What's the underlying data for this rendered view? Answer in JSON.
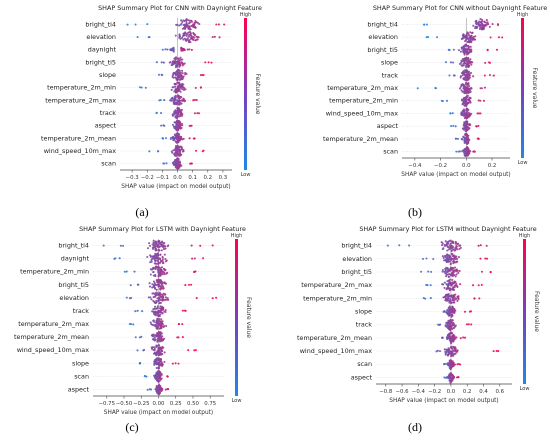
{
  "colors": {
    "low": "#1e88e5",
    "high": "#ff0052",
    "zero_line": "#999999",
    "text": "#333333"
  },
  "colorbar": {
    "high_label": "High",
    "low_label": "Low",
    "title": "Feature value"
  },
  "chart_data": [
    {
      "type": "scatter",
      "subtype": "shap-beeswarm",
      "panel_label": "(a)",
      "title": "SHAP Summary Plot for CNN with Daynight Feature",
      "xlabel": "SHAP value (impact on model output)",
      "ylabel": "",
      "xlim": [
        -0.38,
        0.36
      ],
      "xticks": [
        -0.3,
        -0.2,
        -0.1,
        0.0,
        0.1,
        0.2,
        0.3
      ],
      "xtick_labels": [
        "−0.3",
        "−0.2",
        "−0.1",
        "0.0",
        "0.1",
        "0.2",
        "0.3"
      ],
      "features": [
        {
          "name": "bright_ti4",
          "min": -0.33,
          "max": 0.33,
          "center": 0.07,
          "spread": 0.07,
          "hue": 0.7
        },
        {
          "name": "elevation",
          "min": -0.27,
          "max": 0.3,
          "center": 0.07,
          "spread": 0.08,
          "hue": 0.6
        },
        {
          "name": "daynight",
          "min": -0.1,
          "max": 0.1,
          "center": 0.0,
          "spread": 0.04,
          "hue": 0.5,
          "split": true
        },
        {
          "name": "bright_ti5",
          "min": -0.14,
          "max": 0.26,
          "center": 0.0,
          "spread": 0.05,
          "hue": 0.55
        },
        {
          "name": "slope",
          "min": -0.16,
          "max": 0.2,
          "center": 0.01,
          "spread": 0.05,
          "hue": 0.5
        },
        {
          "name": "temperature_2m_min",
          "min": -0.28,
          "max": 0.18,
          "center": 0.0,
          "spread": 0.05,
          "hue": 0.55
        },
        {
          "name": "temperature_2m_max",
          "min": -0.14,
          "max": 0.16,
          "center": 0.0,
          "spread": 0.05,
          "hue": 0.6
        },
        {
          "name": "track",
          "min": -0.14,
          "max": 0.17,
          "center": 0.0,
          "spread": 0.04,
          "hue": 0.5
        },
        {
          "name": "aspect",
          "min": -0.13,
          "max": 0.1,
          "center": 0.0,
          "spread": 0.03,
          "hue": 0.5
        },
        {
          "name": "temperature_2m_mean",
          "min": -0.11,
          "max": 0.13,
          "center": 0.0,
          "spread": 0.04,
          "hue": 0.55
        },
        {
          "name": "wind_speed_10m_max",
          "min": -0.2,
          "max": 0.18,
          "center": 0.0,
          "spread": 0.04,
          "hue": 0.55
        },
        {
          "name": "scan",
          "min": -0.11,
          "max": 0.1,
          "center": 0.0,
          "spread": 0.03,
          "hue": 0.5
        }
      ]
    },
    {
      "type": "scatter",
      "subtype": "shap-beeswarm",
      "panel_label": "(b)",
      "title": "SHAP Summary Plot for CNN without Daynight Feature",
      "xlabel": "SHAP value (impact on model output)",
      "ylabel": "",
      "xlim": [
        -0.5,
        0.34
      ],
      "xticks": [
        -0.4,
        -0.2,
        0.0,
        0.2
      ],
      "xtick_labels": [
        "−0.4",
        "−0.2",
        "0.0",
        "0.2"
      ],
      "features": [
        {
          "name": "bright_ti4",
          "min": -0.4,
          "max": 0.26,
          "center": 0.12,
          "spread": 0.06,
          "hue": 0.75
        },
        {
          "name": "elevation",
          "min": -0.32,
          "max": 0.3,
          "center": 0.02,
          "spread": 0.06,
          "hue": 0.6
        },
        {
          "name": "bright_ti5",
          "min": -0.15,
          "max": 0.24,
          "center": 0.0,
          "spread": 0.05,
          "hue": 0.55
        },
        {
          "name": "slope",
          "min": -0.16,
          "max": 0.22,
          "center": 0.0,
          "spread": 0.05,
          "hue": 0.5
        },
        {
          "name": "track",
          "min": -0.14,
          "max": 0.22,
          "center": 0.0,
          "spread": 0.05,
          "hue": 0.5
        },
        {
          "name": "temperature_2m_max",
          "min": -0.38,
          "max": 0.18,
          "center": 0.0,
          "spread": 0.05,
          "hue": 0.55
        },
        {
          "name": "temperature_2m_min",
          "min": -0.22,
          "max": 0.16,
          "center": 0.0,
          "spread": 0.04,
          "hue": 0.55
        },
        {
          "name": "wind_speed_10m_max",
          "min": -0.14,
          "max": 0.12,
          "center": 0.0,
          "spread": 0.04,
          "hue": 0.5
        },
        {
          "name": "aspect",
          "min": -0.12,
          "max": 0.1,
          "center": 0.0,
          "spread": 0.03,
          "hue": 0.5
        },
        {
          "name": "temperature_2m_mean",
          "min": -0.1,
          "max": 0.12,
          "center": 0.0,
          "spread": 0.03,
          "hue": 0.55
        },
        {
          "name": "scan",
          "min": -0.08,
          "max": 0.08,
          "center": 0.0,
          "spread": 0.03,
          "hue": 0.5
        }
      ]
    },
    {
      "type": "scatter",
      "subtype": "shap-beeswarm",
      "panel_label": "(c)",
      "title": "SHAP Summary Plot for LSTM with Daynight Feature",
      "xlabel": "SHAP value (impact on model output)",
      "ylabel": "",
      "xlim": [
        -0.95,
        0.95
      ],
      "xticks": [
        -0.75,
        -0.5,
        -0.25,
        0.0,
        0.25,
        0.5,
        0.75
      ],
      "xtick_labels": [
        "−0.75",
        "−0.50",
        "−0.25",
        "0.00",
        "0.25",
        "0.50",
        "0.75"
      ],
      "features": [
        {
          "name": "bright_ti4",
          "min": -0.8,
          "max": 0.8,
          "center": 0.0,
          "spread": 0.15,
          "hue": 0.55
        },
        {
          "name": "daynight",
          "min": -0.75,
          "max": 0.72,
          "center": 0.0,
          "spread": 0.14,
          "hue": 0.5
        },
        {
          "name": "temperature_2m_min",
          "min": -0.5,
          "max": 0.55,
          "center": 0.0,
          "spread": 0.13,
          "hue": 0.55
        },
        {
          "name": "bright_ti5",
          "min": -0.45,
          "max": 0.5,
          "center": 0.0,
          "spread": 0.12,
          "hue": 0.55
        },
        {
          "name": "elevation",
          "min": -0.48,
          "max": 0.85,
          "center": 0.0,
          "spread": 0.13,
          "hue": 0.6
        },
        {
          "name": "track",
          "min": -0.35,
          "max": 0.45,
          "center": 0.0,
          "spread": 0.1,
          "hue": 0.5
        },
        {
          "name": "temperature_2m_max",
          "min": -0.45,
          "max": 0.4,
          "center": 0.0,
          "spread": 0.11,
          "hue": 0.6
        },
        {
          "name": "temperature_2m_mean",
          "min": -0.35,
          "max": 0.38,
          "center": 0.0,
          "spread": 0.1,
          "hue": 0.55
        },
        {
          "name": "wind_speed_10m_max",
          "min": -0.32,
          "max": 0.62,
          "center": 0.0,
          "spread": 0.1,
          "hue": 0.55
        },
        {
          "name": "slope",
          "min": -0.28,
          "max": 0.3,
          "center": 0.0,
          "spread": 0.08,
          "hue": 0.5
        },
        {
          "name": "scan",
          "min": -0.2,
          "max": 0.18,
          "center": 0.0,
          "spread": 0.06,
          "hue": 0.5
        },
        {
          "name": "aspect",
          "min": -0.16,
          "max": 0.15,
          "center": 0.0,
          "spread": 0.05,
          "hue": 0.5
        }
      ]
    },
    {
      "type": "scatter",
      "subtype": "shap-beeswarm",
      "panel_label": "(d)",
      "title": "SHAP Summary Plot for LSTM without Daynight Feature",
      "xlabel": "SHAP value (impact on model output)",
      "ylabel": "",
      "xlim": [
        -0.92,
        0.75
      ],
      "xticks": [
        -0.8,
        -0.6,
        -0.4,
        -0.2,
        0.0,
        0.2,
        0.4,
        0.6
      ],
      "xtick_labels": [
        "−0.8",
        "−0.6",
        "−0.4",
        "−0.2",
        "0.0",
        "0.2",
        "0.4",
        "0.6"
      ],
      "features": [
        {
          "name": "bright_ti4",
          "min": -0.82,
          "max": 0.5,
          "center": 0.0,
          "spread": 0.14,
          "hue": 0.55
        },
        {
          "name": "elevation",
          "min": -0.35,
          "max": 0.55,
          "center": 0.0,
          "spread": 0.11,
          "hue": 0.6
        },
        {
          "name": "bright_ti5",
          "min": -0.38,
          "max": 0.62,
          "center": 0.0,
          "spread": 0.11,
          "hue": 0.55
        },
        {
          "name": "temperature_2m_max",
          "min": -0.35,
          "max": 0.4,
          "center": 0.0,
          "spread": 0.1,
          "hue": 0.6
        },
        {
          "name": "temperature_2m_min",
          "min": -0.38,
          "max": 0.35,
          "center": 0.0,
          "spread": 0.1,
          "hue": 0.55
        },
        {
          "name": "slope",
          "min": -0.12,
          "max": 0.26,
          "center": 0.0,
          "spread": 0.06,
          "hue": 0.5
        },
        {
          "name": "track",
          "min": -0.16,
          "max": 0.28,
          "center": 0.0,
          "spread": 0.07,
          "hue": 0.5
        },
        {
          "name": "temperature_2m_mean",
          "min": -0.15,
          "max": 0.2,
          "center": 0.0,
          "spread": 0.06,
          "hue": 0.55
        },
        {
          "name": "wind_speed_10m_max",
          "min": -0.2,
          "max": 0.6,
          "center": 0.0,
          "spread": 0.08,
          "hue": 0.55
        },
        {
          "name": "scan",
          "min": -0.1,
          "max": 0.12,
          "center": 0.0,
          "spread": 0.05,
          "hue": 0.5
        },
        {
          "name": "aspect",
          "min": -0.08,
          "max": 0.1,
          "center": 0.0,
          "spread": 0.04,
          "hue": 0.5
        }
      ]
    }
  ]
}
